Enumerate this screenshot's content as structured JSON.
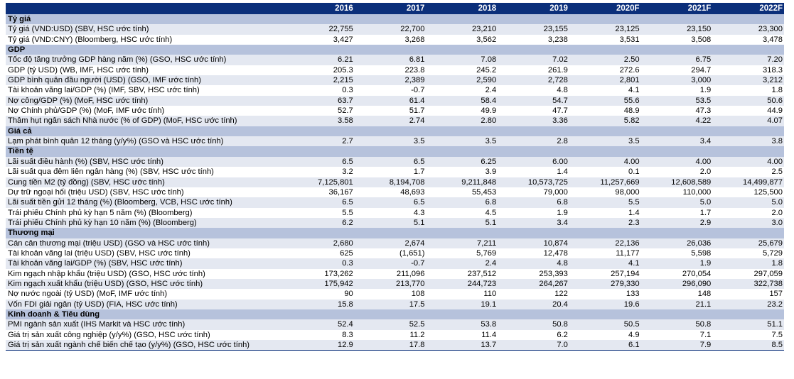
{
  "years": [
    "2016",
    "2017",
    "2018",
    "2019",
    "2020F",
    "2021F",
    "2022F"
  ],
  "sections": [
    {
      "title": "Tỷ giá",
      "rows": [
        {
          "label": "Tỷ giá (VND:USD) (SBV, HSC ước tính)",
          "values": [
            "22,755",
            "22,700",
            "23,210",
            "23,155",
            "23,125",
            "23,150",
            "23,300"
          ]
        },
        {
          "label": "Tỷ giá (VND:CNY) (Bloomberg, HSC ước tính)",
          "values": [
            "3,427",
            "3,268",
            "3,562",
            "3,238",
            "3,531",
            "3,508",
            "3,478"
          ]
        }
      ]
    },
    {
      "title": "GDP",
      "rows": [
        {
          "label": "Tốc độ tăng trưởng GDP hàng năm (%) (GSO, HSC ước tính)",
          "values": [
            "6.21",
            "6.81",
            "7.08",
            "7.02",
            "2.50",
            "6.75",
            "7.20"
          ]
        },
        {
          "label": "GDP (tỷ USD) (WB, IMF, HSC ước tính)",
          "values": [
            "205.3",
            "223.8",
            "245.2",
            "261.9",
            "272.6",
            "294.7",
            "318.3"
          ]
        },
        {
          "label": "GDP bình quân đầu người (USD) (GSO, IMF ước tính)",
          "values": [
            "2,215",
            "2,389",
            "2,590",
            "2,728",
            "2,801",
            "3,000",
            "3,212"
          ]
        },
        {
          "label": "Tài khoản vãng lai/GDP (%) (IMF, SBV, HSC ước tính)",
          "values": [
            "0.3",
            "-0.7",
            "2.4",
            "4.8",
            "4.1",
            "1.9",
            "1.8"
          ]
        },
        {
          "label": "Nợ công/GDP (%) (MoF, HSC ước tính)",
          "values": [
            "63.7",
            "61.4",
            "58.4",
            "54.7",
            "55.6",
            "53.5",
            "50.6"
          ]
        },
        {
          "label": "Nợ Chính phủ/GDP (%) (MoF, IMF ước tính)",
          "values": [
            "52.7",
            "51.7",
            "49.9",
            "47.7",
            "48.9",
            "47.3",
            "44.9"
          ]
        },
        {
          "label": "Thâm hụt ngân sách Nhà nước (% of GDP) (MoF, HSC ước tính)",
          "values": [
            "3.58",
            "2.74",
            "2.80",
            "3.36",
            "5.82",
            "4.22",
            "4.07"
          ]
        }
      ]
    },
    {
      "title": "Giá cả",
      "rows": [
        {
          "label": "Lạm phát bình quân 12 tháng (y/y%) (GSO và HSC ước tính)",
          "values": [
            "2.7",
            "3.5",
            "3.5",
            "2.8",
            "3.5",
            "3.4",
            "3.8"
          ]
        }
      ]
    },
    {
      "title": "Tiền tệ",
      "rows": [
        {
          "label": "Lãi suất điều hành (%) (SBV, HSC ước tính)",
          "values": [
            "6.5",
            "6.5",
            "6.25",
            "6.00",
            "4.00",
            "4.00",
            "4.00"
          ]
        },
        {
          "label": "Lãi suất qua đêm liên ngân hàng (%) (SBV, HSC ước tính)",
          "values": [
            "3.2",
            "1.7",
            "3.9",
            "1.4",
            "0.1",
            "2.0",
            "2.5"
          ]
        },
        {
          "label": "Cung tiền M2 (tỷ đồng) (SBV, HSC ước tính)",
          "values": [
            "7,125,801",
            "8,194,708",
            "9,211,848",
            "10,573,725",
            "11,257,669",
            "12,608,589",
            "14,499,877"
          ]
        },
        {
          "label": "Dự trữ ngoại hối (triệu USD) (SBV, HSC ước tính)",
          "values": [
            "36,167",
            "48,693",
            "55,453",
            "79,000",
            "98,000",
            "110,000",
            "125,500"
          ]
        },
        {
          "label": "Lãi suất tiền gửi 12 tháng (%) (Bloomberg, VCB, HSC ước tính)",
          "values": [
            "6.5",
            "6.5",
            "6.8",
            "6.8",
            "5.5",
            "5.0",
            "5.0"
          ]
        },
        {
          "label": "Trái phiếu Chính phủ kỳ hạn 5 năm (%) (Bloomberg)",
          "values": [
            "5.5",
            "4.3",
            "4.5",
            "1.9",
            "1.4",
            "1.7",
            "2.0"
          ]
        },
        {
          "label": "Trái phiếu Chính phủ kỳ hạn 10 năm (%) (Bloomberg)",
          "values": [
            "6.2",
            "5.1",
            "5.1",
            "3.4",
            "2.3",
            "2.9",
            "3.0"
          ]
        }
      ]
    },
    {
      "title": "Thương mại",
      "rows": [
        {
          "label": "Cán cân thương mại (triệu USD) (GSO và HSC ước tính)",
          "values": [
            "2,680",
            "2,674",
            "7,211",
            "10,874",
            "22,136",
            "26,036",
            "25,679"
          ]
        },
        {
          "label": "Tài khoản vãng lai (triệu USD) (SBV, HSC ước tính)",
          "values": [
            "625",
            "(1,651)",
            "5,769",
            "12,478",
            "11,177",
            "5,598",
            "5,729"
          ]
        },
        {
          "label": "Tài khoản vãng lai/GDP (%) (SBV, HSC ước tính)",
          "values": [
            "0.3",
            "-0.7",
            "2.4",
            "4.8",
            "4.1",
            "1.9",
            "1.8"
          ]
        },
        {
          "label": "Kim ngạch nhập khẩu (triệu USD) (GSO, HSC ước tính)",
          "values": [
            "173,262",
            "211,096",
            "237,512",
            "253,393",
            "257,194",
            "270,054",
            "297,059"
          ]
        },
        {
          "label": "Kim ngạch xuất khẩu (triệu USD) (GSO, HSC ước tính)",
          "values": [
            "175,942",
            "213,770",
            "244,723",
            "264,267",
            "279,330",
            "296,090",
            "322,738"
          ]
        },
        {
          "label": "Nợ nước ngoài (tỷ USD) (MoF, IMF ước tính)",
          "values": [
            "90",
            "108",
            "110",
            "122",
            "133",
            "148",
            "157"
          ]
        },
        {
          "label": "Vốn FDI giải ngân (tỷ USD) (FIA, HSC ước tính)",
          "values": [
            "15.8",
            "17.5",
            "19.1",
            "20.4",
            "19.6",
            "21.1",
            "23.2"
          ]
        }
      ]
    },
    {
      "title": "Kinh doanh & Tiêu dùng",
      "rows": [
        {
          "label": "PMI ngành sản xuất (IHS Markit và HSC ước tính)",
          "values": [
            "52.4",
            "52.5",
            "53.8",
            "50.8",
            "50.5",
            "50.8",
            "51.1"
          ]
        },
        {
          "label": "Giá trị sản xuất công nghiệp (y/y%) (GSO, HSC ước tính)",
          "values": [
            "8.3",
            "11.2",
            "11.4",
            "6.2",
            "4.9",
            "7.1",
            "7.5"
          ]
        },
        {
          "label": "Giá trị sản xuất ngành chế biến chế tạo (y/y%) (GSO, HSC ước tính)",
          "values": [
            "12.9",
            "17.8",
            "13.7",
            "7.0",
            "6.1",
            "7.9",
            "8.5"
          ]
        }
      ]
    }
  ]
}
